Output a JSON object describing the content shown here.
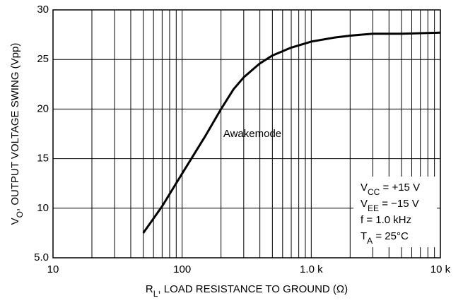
{
  "chart_data": {
    "type": "line",
    "x": [
      50,
      70,
      100,
      150,
      200,
      250,
      300,
      400,
      500,
      700,
      1000,
      1500,
      2000,
      3000,
      5000,
      10000
    ],
    "series": [
      {
        "name": "Awakemode",
        "color": "#000000",
        "values": [
          7.5,
          10.2,
          13.5,
          17.2,
          20,
          22,
          23.2,
          24.6,
          25.4,
          26.2,
          26.8,
          27.2,
          27.4,
          27.6,
          27.6,
          27.7
        ]
      }
    ],
    "xlim": [
      10,
      10000
    ],
    "xscale": "log",
    "xticks": [
      10,
      100,
      {
        "value": 1000,
        "label": "1.0 k"
      },
      {
        "value": 10000,
        "label": "10 k"
      }
    ],
    "xminor_ticks": [
      20,
      30,
      40,
      50,
      60,
      70,
      80,
      90,
      200,
      300,
      400,
      500,
      600,
      700,
      800,
      900,
      2000,
      3000,
      4000,
      5000,
      6000,
      7000,
      8000,
      9000
    ],
    "ylim": [
      5,
      30
    ],
    "yticks": [
      {
        "value": 5,
        "label": "5.0"
      },
      10,
      15,
      20,
      25,
      30
    ],
    "grid": true,
    "ylabel": [
      "V",
      "O",
      ", OUTPUT VOLTAGE SWING (Vpp)"
    ],
    "xlabel": [
      "R",
      "L",
      ", LOAD RESISTANCE TO GROUND (Ω)"
    ],
    "conditions": [
      [
        "V",
        "CC",
        " = +15 V"
      ],
      [
        "V",
        "EE",
        " = −15 V"
      ],
      [
        "f = 1.0 kHz"
      ],
      [
        "T",
        "A",
        " = 25°C"
      ]
    ]
  }
}
